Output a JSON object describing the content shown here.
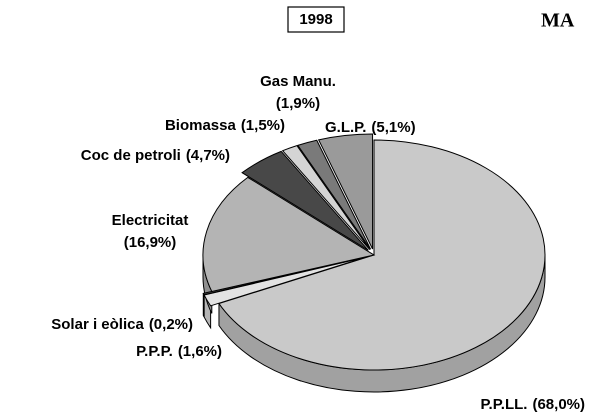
{
  "chart_data": {
    "type": "pie",
    "title": "1998",
    "annotation": "MA",
    "categories": [
      "P.P.LL.",
      "P.P.P.",
      "Solar i eòlica",
      "Electricitat",
      "Coc de petroli",
      "Biomassa",
      "Gas Manu.",
      "G.L.P."
    ],
    "values": [
      68.0,
      1.6,
      0.2,
      16.9,
      4.7,
      1.5,
      1.9,
      5.1
    ],
    "value_labels": [
      "(68,0%)",
      "(1,6%)",
      "(0,2%)",
      "(16,9%)",
      "(4,7%)",
      "(1,5%)",
      "(1,9%)",
      "(5,1%)"
    ],
    "colors": [
      "#c9c9c9",
      "#e2e2e2",
      "#5a5a5a",
      "#b4b4b4",
      "#484848",
      "#d4d4d4",
      "#7a7a7a",
      "#9a9a9a"
    ]
  }
}
